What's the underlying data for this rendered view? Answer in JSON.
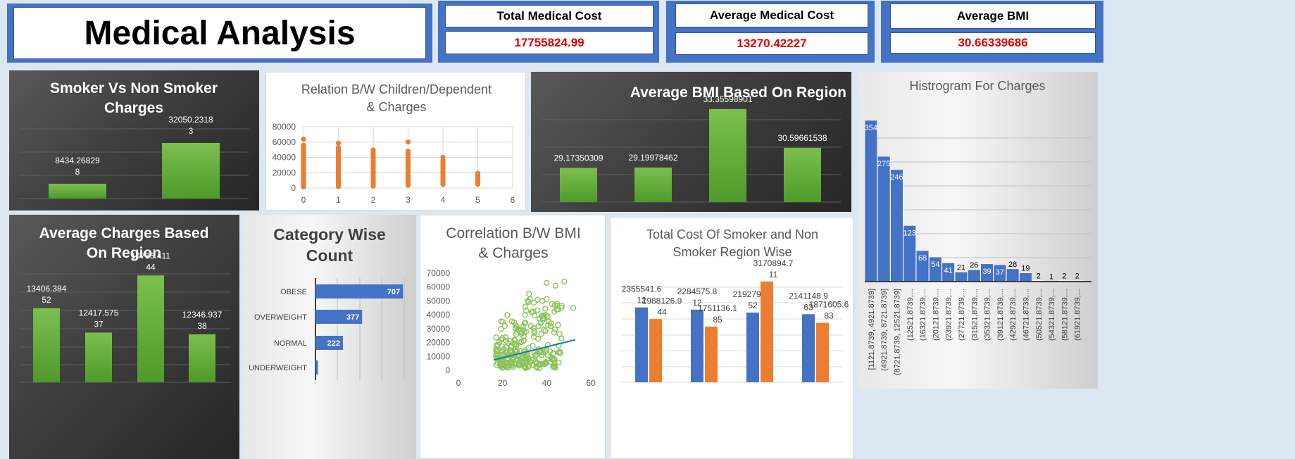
{
  "header": {
    "title": "Medical Analysis",
    "kpis": [
      {
        "label": "Total Medical Cost",
        "value": "17755824.99"
      },
      {
        "label": "Average Medical Cost",
        "value": "13270.42227"
      },
      {
        "label": "Average BMI",
        "value": "30.66339686"
      }
    ]
  },
  "colors": {
    "green": "#6aaf3e",
    "blue": "#4472c4",
    "orange": "#ed7d31",
    "kpi_value": "#e00000"
  },
  "chart_data": [
    {
      "id": "smoker",
      "type": "bar",
      "title": "Smoker Vs Non Smoker Charges",
      "categories": [
        "",
        ""
      ],
      "values": [
        8434.268298,
        32050.23183
      ],
      "labels": [
        [
          "8434.26829",
          "8"
        ],
        [
          "32050.2318",
          "3"
        ]
      ],
      "ylim": [
        0,
        40000
      ]
    },
    {
      "id": "children",
      "type": "scatter",
      "title": "Relation B/W Children/Dependent & Charges",
      "xlim": [
        0,
        6
      ],
      "ylim": [
        0,
        80000
      ],
      "xticks": [
        "0",
        "1",
        "2",
        "3",
        "4",
        "5",
        "6"
      ],
      "yticks": [
        "0",
        "20000",
        "40000",
        "60000",
        "80000"
      ],
      "ranges": [
        {
          "x": 0,
          "min": 1122,
          "max": 56000,
          "top": 63770
        },
        {
          "x": 1,
          "min": 1711,
          "max": 53000,
          "top": 58571
        },
        {
          "x": 2,
          "min": 2304,
          "max": 49577,
          "top": 49577
        },
        {
          "x": 3,
          "min": 3443,
          "max": 48000,
          "top": 60021
        },
        {
          "x": 4,
          "min": 4504,
          "max": 36000,
          "top": 40182
        },
        {
          "x": 5,
          "min": 4688,
          "max": 19023,
          "top": 19023
        }
      ]
    },
    {
      "id": "bmi_region",
      "type": "bar",
      "title": "Average BMI Based On Region",
      "categories": [
        "",
        "",
        "",
        ""
      ],
      "values": [
        29.17350309,
        29.19978462,
        33.35598901,
        30.59661538
      ],
      "labels": [
        [
          "29.17350309"
        ],
        [
          "29.19978462"
        ],
        [
          "33.35598901"
        ],
        [
          "30.59661538"
        ]
      ],
      "ylim": [
        26,
        34
      ]
    },
    {
      "id": "histogram",
      "type": "bar",
      "title": "Histrogram For Charges",
      "categories": [
        "[1121.8739, 4921.8739]",
        "(4921.8739, 8721.8739]",
        "(8721.8739, 12521.8739]",
        "(12521.8739,...",
        "(16321.8739,...",
        "(20121.8739,...",
        "(23921.8739,...",
        "(27721.8739,...",
        "(31521.8739,...",
        "(35321.8739,...",
        "(39121.8739,...",
        "(42921.8739,...",
        "(46721.8739,...",
        "(50521.8739,...",
        "(54321.8739,...",
        "(58121.8739,...",
        "(61921.8739,..."
      ],
      "values": [
        354,
        275,
        246,
        123,
        68,
        54,
        41,
        21,
        26,
        39,
        37,
        28,
        19,
        2,
        1,
        2,
        2
      ],
      "ylim": [
        0,
        354
      ]
    },
    {
      "id": "charges_region",
      "type": "bar",
      "title": "Average Charges Based On Region",
      "categories": [
        "",
        "",
        "",
        ""
      ],
      "values": [
        13406.38452,
        12417.57537,
        14735.41144,
        12346.93738
      ],
      "labels": [
        [
          "13406.384",
          "52"
        ],
        [
          "12417.575",
          "37"
        ],
        [
          "14735.411",
          "44"
        ],
        [
          "12346.937",
          "38"
        ]
      ],
      "ylim": [
        10000,
        15000
      ]
    },
    {
      "id": "category",
      "type": "bar",
      "orientation": "horizontal",
      "title": "Category Wise Count",
      "categories": [
        "OBESE",
        "OVERWEIGHT",
        "NORMAL",
        "UNDERWEIGHT"
      ],
      "values": [
        707,
        377,
        222,
        20
      ],
      "xlim": [
        0,
        800
      ]
    },
    {
      "id": "bmi_corr",
      "type": "scatter",
      "title": "Correlation B/W BMI & Charges",
      "xlim": [
        0,
        60
      ],
      "ylim": [
        0,
        70000
      ],
      "xticks": [
        "0",
        "20",
        "40",
        "60"
      ],
      "yticks": [
        "0",
        "10000",
        "20000",
        "30000",
        "40000",
        "50000",
        "60000",
        "70000"
      ],
      "trendline": [
        [
          16,
          7500
        ],
        [
          53,
          22000
        ]
      ]
    },
    {
      "id": "smoker_region",
      "type": "bar",
      "title": "Total Cost Of Smoker and Non Smoker Region Wise",
      "categories": [
        "",
        "",
        "",
        ""
      ],
      "series": [
        {
          "values": [
            2355541.612,
            2284575.812,
            2192795.052,
            2141148.963
          ]
        },
        {
          "values": [
            1988126.944,
            1751136.185,
            3170894.711,
            1871605.683
          ]
        }
      ],
      "labels": [
        [
          [
            "2355541.6",
            "12"
          ],
          [
            "2284575.8",
            "12"
          ],
          [
            "2192795.0",
            "52"
          ],
          [
            "2141148.9",
            "63"
          ]
        ],
        [
          [
            "1988126.9",
            "44"
          ],
          [
            "1751136.1",
            "85"
          ],
          [
            "3170894.7",
            "11"
          ],
          [
            "1871605.6",
            "83"
          ]
        ]
      ],
      "ylim": [
        0,
        3500000
      ]
    }
  ]
}
